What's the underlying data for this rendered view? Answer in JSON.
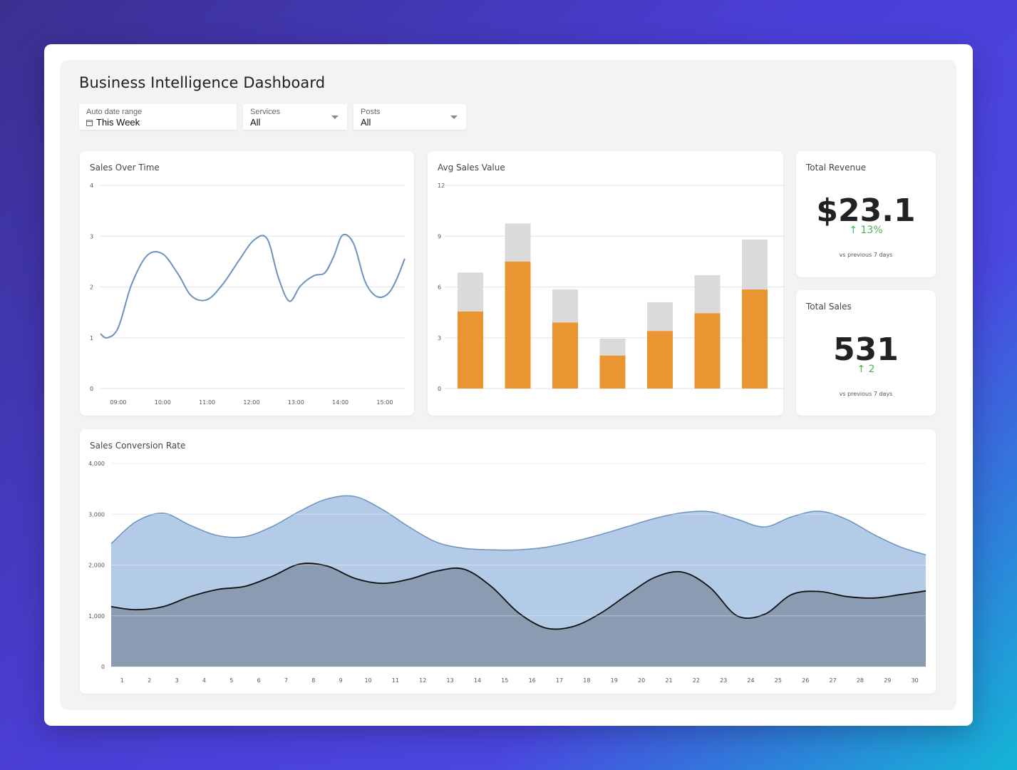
{
  "dashboard": {
    "title": "Business Intelligence Dashboard"
  },
  "filters": {
    "date_range": {
      "label": "Auto date range",
      "value": "This Week",
      "icon": "calendar-icon"
    },
    "services": {
      "label": "Services",
      "value": "All",
      "icon": "chevron-down-icon"
    },
    "posts": {
      "label": "Posts",
      "value": "All",
      "icon": "chevron-down-icon"
    }
  },
  "cards": {
    "sales_over_time": {
      "title": "Sales Over Time"
    },
    "avg_sales_value": {
      "title": "Avg Sales Value"
    },
    "total_revenue": {
      "title": "Total Revenue",
      "value": "$23.1",
      "delta": "↑ 13%",
      "note": "vs previous 7 days"
    },
    "total_sales": {
      "title": "Total Sales",
      "value": "531",
      "delta": "↑ 2",
      "note": "vs previous 7 days"
    },
    "sales_conversion": {
      "title": "Sales Conversion Rate"
    }
  },
  "colors": {
    "line": "#6b93bf",
    "bar_primary": "#e99531",
    "bar_secondary": "#dadada",
    "area_light": "#b4cbe8",
    "area_light_stroke": "#6b93bf",
    "area_dark": "#8a9bb2",
    "area_dark_stroke": "#111111",
    "positive": "#4caf50"
  },
  "chart_data": [
    {
      "id": "sales_over_time",
      "type": "line",
      "title": "Sales Over Time",
      "x_ticks": [
        "09:00",
        "10:00",
        "11:00",
        "12:00",
        "13:00",
        "14:00",
        "15:00"
      ],
      "y_ticks": [
        0,
        1,
        2,
        3,
        4
      ],
      "ylim": [
        0,
        4
      ],
      "xlim": [
        8.6,
        15.45
      ],
      "grid": true,
      "series": [
        {
          "x": [
            8.6,
            8.75,
            9.0,
            9.3,
            9.65,
            10.0,
            10.35,
            10.65,
            11.0,
            11.35,
            11.7,
            12.05,
            12.35,
            12.6,
            12.85,
            13.1,
            13.4,
            13.65,
            13.85,
            14.05,
            14.3,
            14.55,
            14.8,
            15.05,
            15.25,
            15.45
          ],
          "y": [
            1.08,
            1.0,
            1.2,
            2.05,
            2.62,
            2.65,
            2.25,
            1.82,
            1.75,
            2.05,
            2.5,
            2.92,
            2.95,
            2.2,
            1.72,
            2.02,
            2.22,
            2.28,
            2.6,
            3.02,
            2.85,
            2.12,
            1.82,
            1.85,
            2.12,
            2.56
          ]
        }
      ]
    },
    {
      "id": "avg_sales_value",
      "type": "bar",
      "title": "Avg Sales Value",
      "stacked": true,
      "y_ticks": [
        0,
        3,
        6,
        9,
        12
      ],
      "ylim": [
        0,
        12
      ],
      "grid": true,
      "categories": [
        "",
        "",
        "",
        "",
        "",
        "",
        ""
      ],
      "series": [
        {
          "values": [
            4.55,
            7.5,
            3.9,
            1.95,
            3.4,
            4.45,
            5.85
          ]
        },
        {
          "values": [
            2.3,
            2.25,
            1.95,
            1.0,
            1.7,
            2.25,
            2.95
          ]
        }
      ]
    },
    {
      "id": "sales_conversion",
      "type": "area",
      "title": "Sales Conversion Rate",
      "categories": [
        "1",
        "2",
        "3",
        "4",
        "5",
        "6",
        "7",
        "8",
        "9",
        "10",
        "11",
        "12",
        "13",
        "14",
        "15",
        "16",
        "17",
        "18",
        "19",
        "20",
        "21",
        "22",
        "23",
        "24",
        "25",
        "26",
        "27",
        "28",
        "29",
        "30"
      ],
      "y_ticks": [
        "0",
        "1,000",
        "2,000",
        "3,000",
        "4,000"
      ],
      "ylim": [
        0,
        4000
      ],
      "xlim": [
        0.6,
        30.4
      ],
      "grid": true,
      "series": [
        {
          "x": [
            0.6,
            1.5,
            2.5,
            3.5,
            4.5,
            5.5,
            6.5,
            7.5,
            8.5,
            9.5,
            10.5,
            11.5,
            12.5,
            13.5,
            14.5,
            15.5,
            16.5,
            17.5,
            18.5,
            19.5,
            20.5,
            21.5,
            22.5,
            23.5,
            24.5,
            25.5,
            26.5,
            27.5,
            28.5,
            29.5,
            30.4
          ],
          "y": [
            2420,
            2850,
            3020,
            2780,
            2580,
            2560,
            2760,
            3060,
            3300,
            3350,
            3100,
            2750,
            2450,
            2330,
            2300,
            2300,
            2350,
            2460,
            2600,
            2760,
            2920,
            3030,
            3050,
            2900,
            2750,
            2950,
            3060,
            2900,
            2600,
            2350,
            2200
          ]
        },
        {
          "x": [
            0.6,
            1.5,
            2.5,
            3.5,
            4.5,
            5.5,
            6.5,
            7.5,
            8.5,
            9.5,
            10.5,
            11.5,
            12.5,
            13.5,
            14.5,
            15.5,
            16.5,
            17.5,
            18.5,
            19.5,
            20.5,
            21.5,
            22.5,
            23.5,
            24.5,
            25.5,
            26.5,
            27.5,
            28.5,
            29.5,
            30.4
          ],
          "y": [
            1180,
            1120,
            1180,
            1380,
            1520,
            1580,
            1780,
            2020,
            1980,
            1740,
            1640,
            1720,
            1880,
            1920,
            1580,
            1060,
            760,
            790,
            1050,
            1420,
            1760,
            1860,
            1560,
            1000,
            1030,
            1420,
            1480,
            1380,
            1350,
            1420,
            1490
          ]
        }
      ]
    }
  ]
}
